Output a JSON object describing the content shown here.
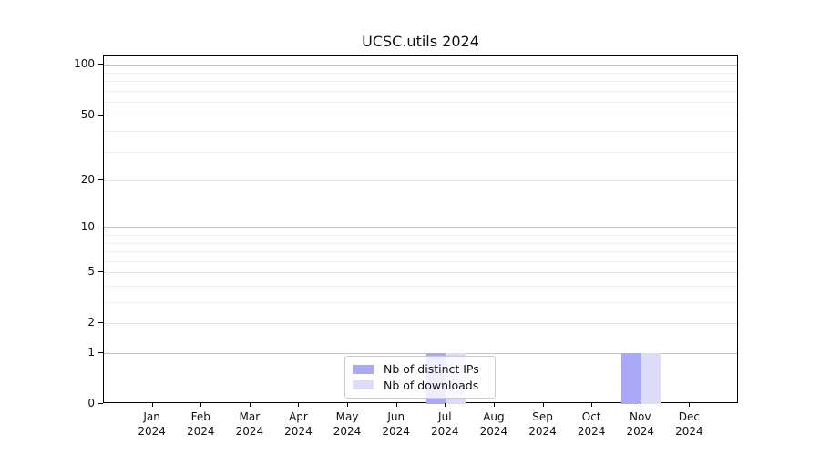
{
  "chart_data": {
    "type": "bar",
    "title": "UCSC.utils 2024",
    "categories": [
      "Jan",
      "Feb",
      "Mar",
      "Apr",
      "May",
      "Jun",
      "Jul",
      "Aug",
      "Sep",
      "Oct",
      "Nov",
      "Dec"
    ],
    "year_label": "2024",
    "series": [
      {
        "name": "Nb of distinct IPs",
        "color": "#a9a9f7",
        "values": [
          0,
          0,
          0,
          0,
          0,
          0,
          1,
          0,
          0,
          0,
          1,
          0
        ]
      },
      {
        "name": "Nb of downloads",
        "color": "#dcdcf9",
        "values": [
          0,
          0,
          0,
          0,
          0,
          0,
          1,
          0,
          0,
          0,
          1,
          0
        ]
      }
    ],
    "xlabel": "",
    "ylabel": "",
    "yscale": "log1p",
    "ylim": [
      0,
      114
    ],
    "y_ticks": [
      0,
      1,
      2,
      5,
      10,
      20,
      50,
      100
    ],
    "y_minor_gridlines": [
      3,
      4,
      6,
      7,
      8,
      9,
      30,
      40,
      60,
      70,
      80,
      90
    ],
    "grid": {
      "on": true,
      "major_color": "#c2c2c2",
      "labeled_color": "#e4e4e4",
      "minor_color": "#efefef"
    },
    "legend_position": "lower center (overlaying Jul bars)"
  }
}
